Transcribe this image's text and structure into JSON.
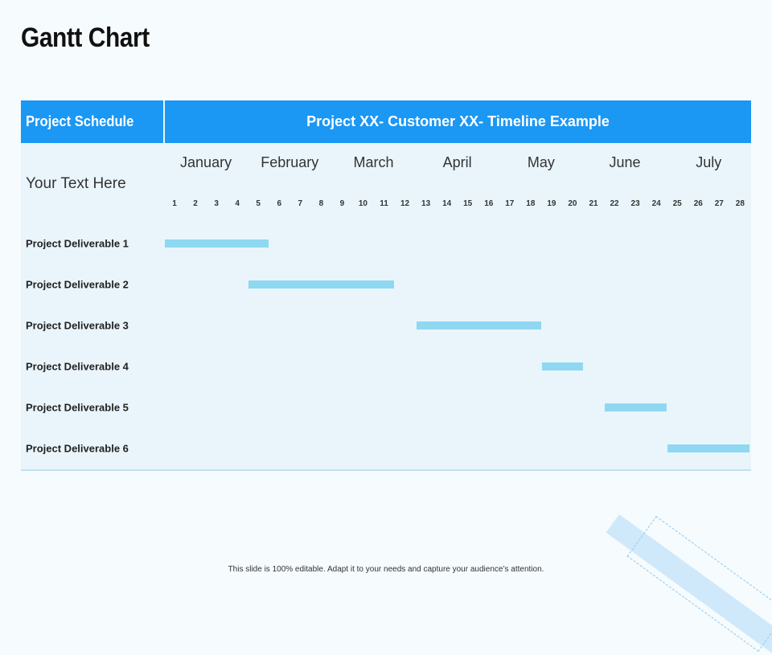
{
  "page": {
    "title": "Gantt Chart",
    "footer": "This slide is 100% editable. Adapt it to your needs and capture your audience’s attention."
  },
  "table": {
    "left_header": "Project Schedule",
    "right_header": "Project XX- Customer XX- Timeline Example",
    "subtitle": "Your Text Here"
  },
  "colors": {
    "header_bg": "#1b97f4",
    "body_bg": "#eaf5fb",
    "bar": "#8fd8f2"
  },
  "chart_data": {
    "type": "gantt",
    "months": [
      {
        "label": "January",
        "center_tick": 2.5
      },
      {
        "label": "February",
        "center_tick": 6.5
      },
      {
        "label": "March",
        "center_tick": 10.5
      },
      {
        "label": "April",
        "center_tick": 14.5
      },
      {
        "label": "May",
        "center_tick": 18.5
      },
      {
        "label": "June",
        "center_tick": 22.5
      },
      {
        "label": "July",
        "center_tick": 26.5
      }
    ],
    "ticks": [
      1,
      2,
      3,
      4,
      5,
      6,
      7,
      8,
      9,
      10,
      11,
      12,
      13,
      14,
      15,
      16,
      17,
      18,
      19,
      20,
      21,
      22,
      23,
      24,
      25,
      26,
      27,
      28
    ],
    "tasks": [
      {
        "name": "Project Deliverable 1",
        "start": 1,
        "end": 5
      },
      {
        "name": "Project Deliverable 2",
        "start": 5,
        "end": 11
      },
      {
        "name": "Project Deliverable 3",
        "start": 13,
        "end": 18
      },
      {
        "name": "Project Deliverable 4",
        "start": 19,
        "end": 20
      },
      {
        "name": "Project Deliverable 5",
        "start": 22,
        "end": 24
      },
      {
        "name": "Project Deliverable 6",
        "start": 25,
        "end": 28
      }
    ]
  }
}
